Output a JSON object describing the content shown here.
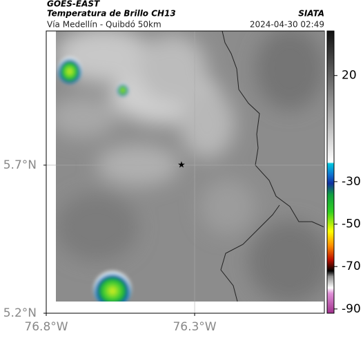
{
  "header": {
    "satellite": "GOES-EAST",
    "product": "Temperatura de Brillo CH13",
    "route": "Vía Medellín - Quibdó 50km",
    "source": "SIATA",
    "datetime": "2024-04-30 02:49"
  },
  "map": {
    "xlim": [
      -76.8,
      -75.863
    ],
    "ylim": [
      5.2,
      6.153
    ],
    "xticks": [
      {
        "value": -76.8,
        "label": "76.8°W"
      },
      {
        "value": -76.3,
        "label": "76.3°W"
      }
    ],
    "yticks": [
      {
        "value": 5.7,
        "label": "5.7°N"
      },
      {
        "value": 5.2,
        "label": "5.2°N"
      }
    ],
    "grid": true
  },
  "colorbar": {
    "lim": [
      -92,
      41
    ],
    "ticks": [
      20,
      -30,
      -50,
      -70,
      -90
    ]
  }
}
